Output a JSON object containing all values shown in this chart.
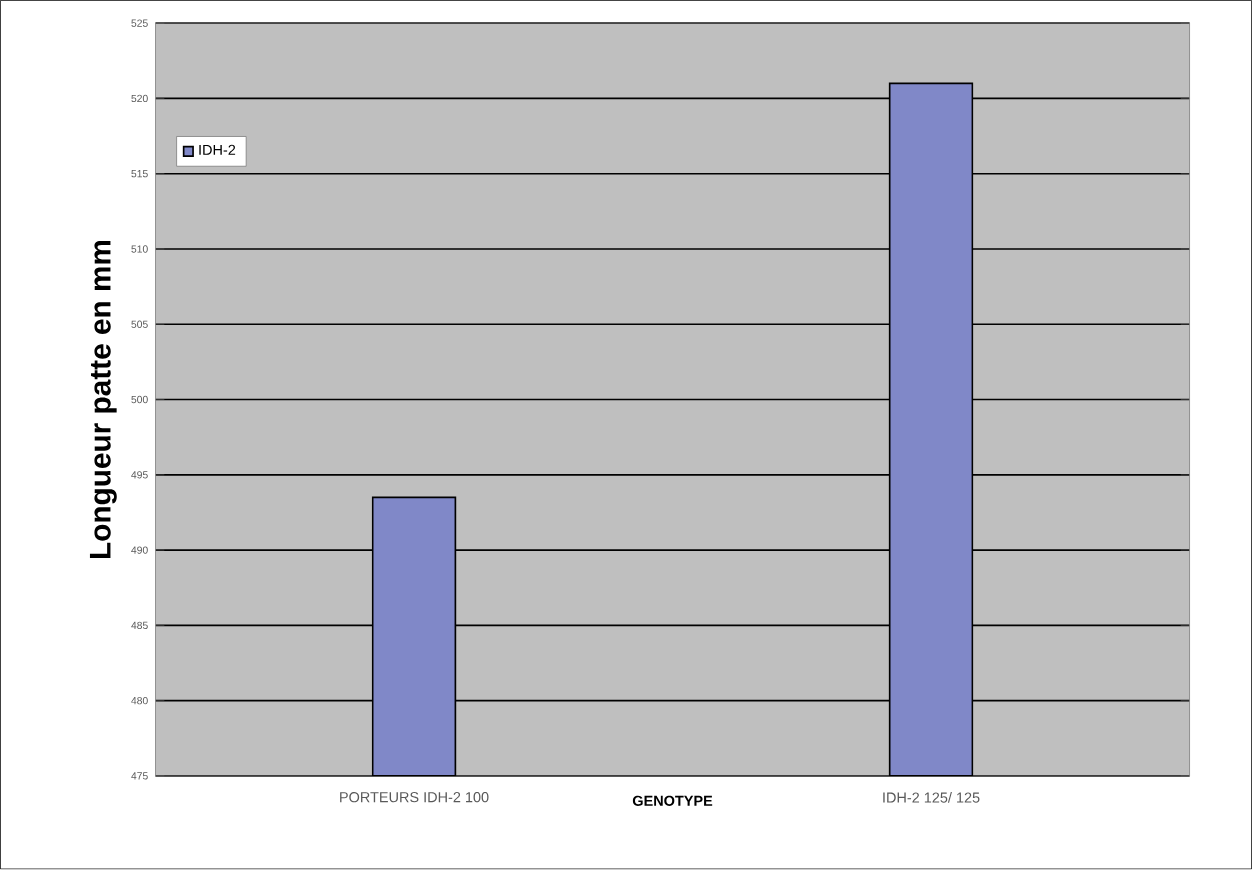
{
  "chart_data": {
    "type": "bar",
    "xlabel": "GENOTYPE",
    "ylabel": "Longueur patte en mm",
    "categories": [
      "PORTEURS IDH-2 100",
      "IDH-2 125/ 125"
    ],
    "series": [
      {
        "name": "IDH-2",
        "color": "#8088c8",
        "values": [
          493.5,
          521
        ]
      }
    ],
    "ylim": [
      475,
      525
    ],
    "yticks": [
      475,
      480,
      485,
      490,
      495,
      500,
      505,
      510,
      515,
      520,
      525
    ],
    "grid": "y",
    "legend": "top left"
  }
}
